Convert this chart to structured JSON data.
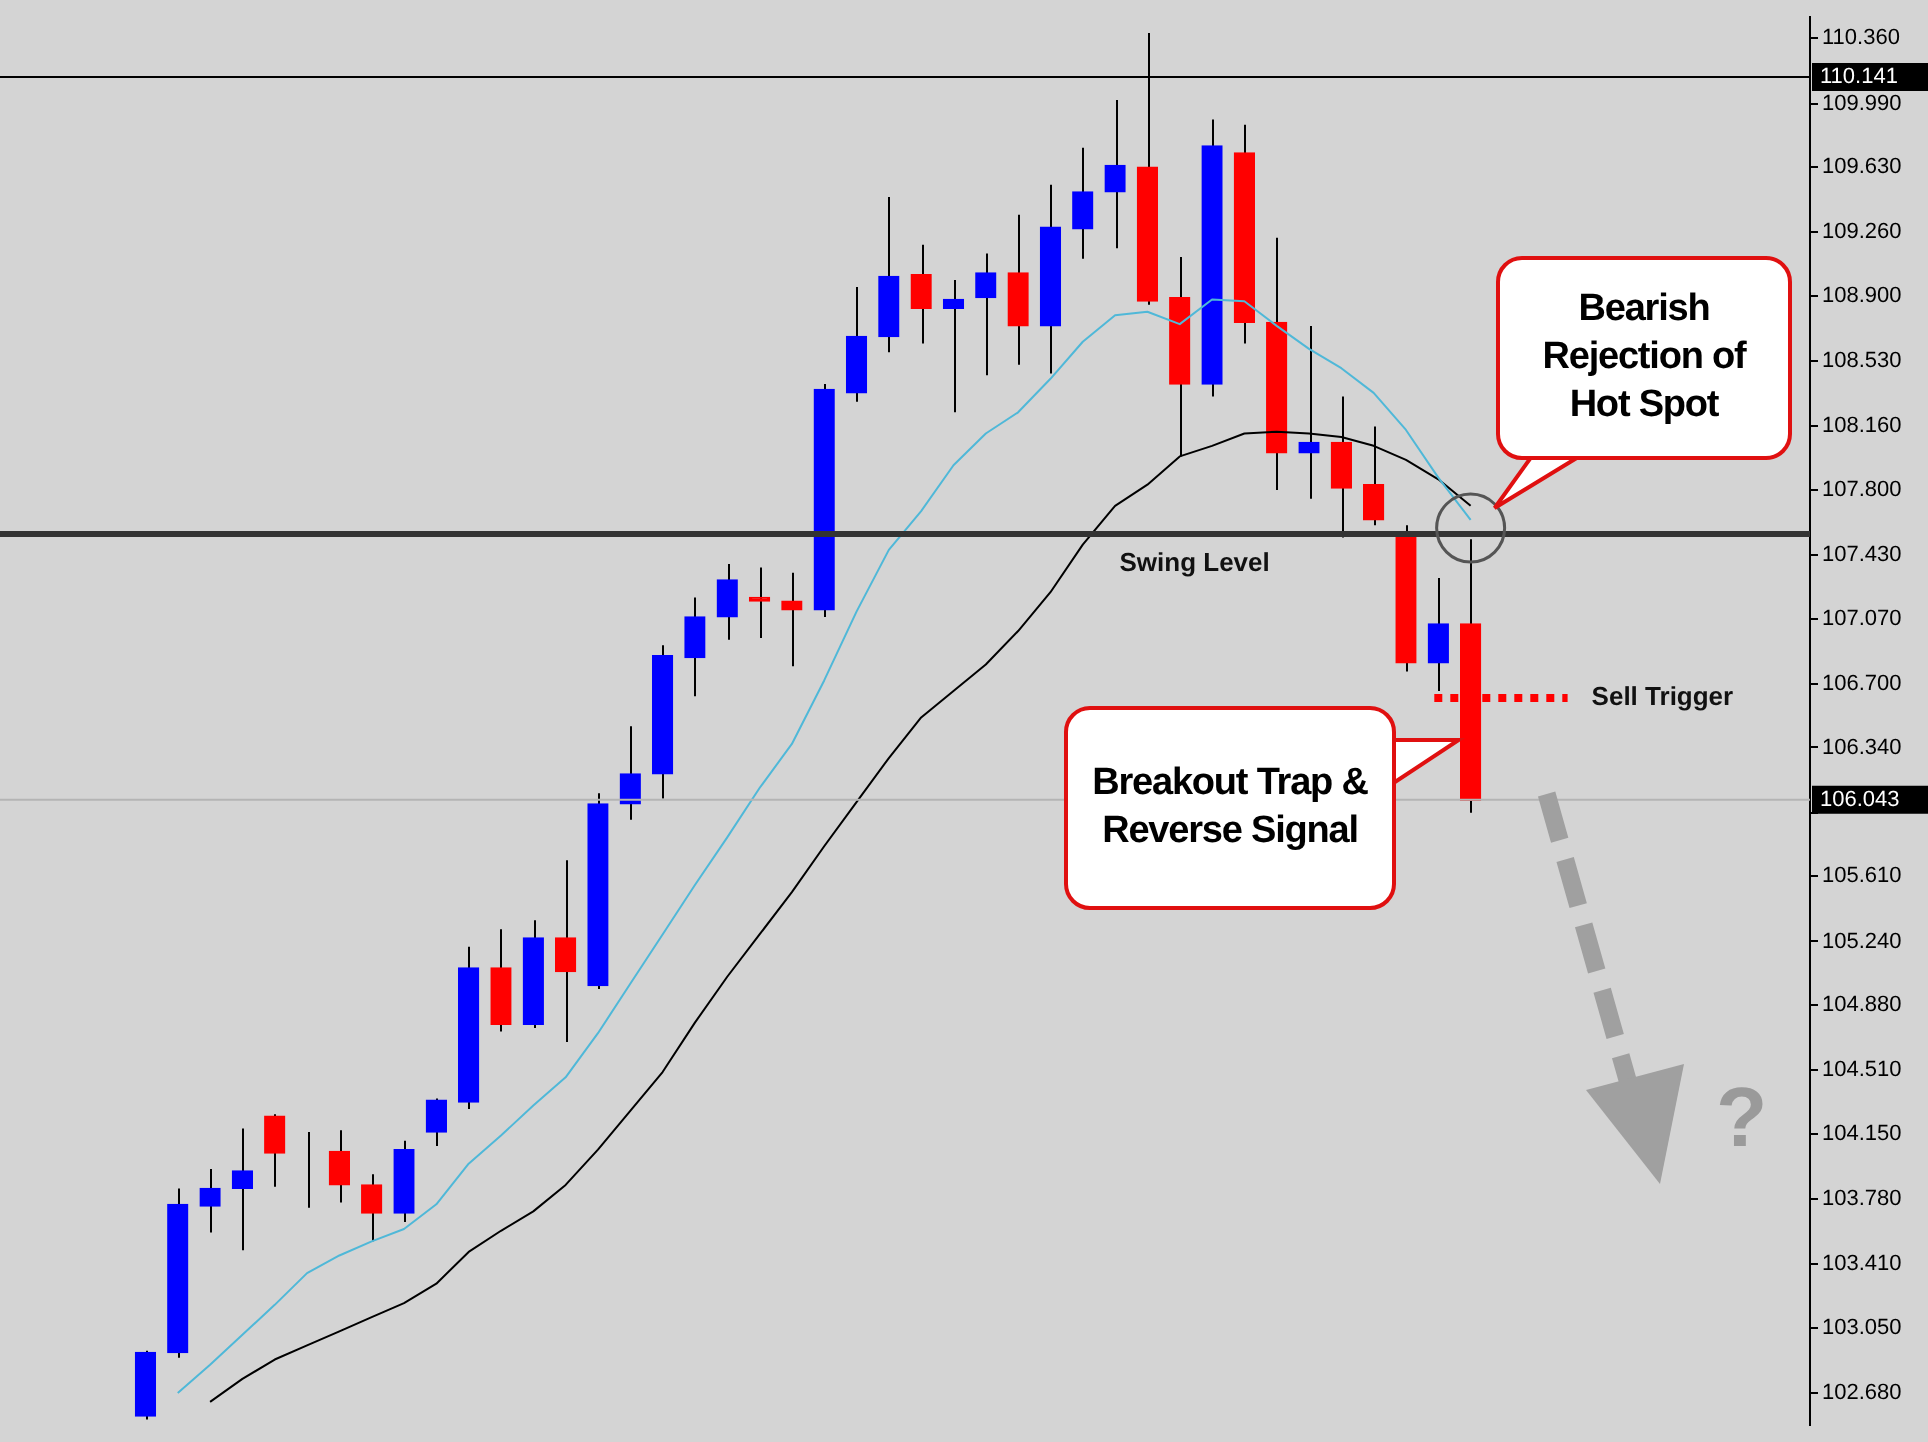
{
  "chart_data": {
    "type": "candlestick",
    "categories": [
      null,
      null,
      null,
      null,
      null,
      null,
      null,
      null,
      null,
      null,
      null,
      null,
      null,
      null,
      null,
      null,
      null,
      null,
      null,
      null,
      null,
      null,
      null,
      null,
      null,
      null,
      null,
      null,
      null,
      null,
      null,
      null,
      null,
      null,
      null,
      null,
      null,
      null,
      null,
      null,
      null,
      null,
      null,
      null,
      null,
      null,
      null,
      null,
      null,
      null,
      null,
      null,
      null,
      null,
      null,
      null
    ],
    "ohlc": [
      null,
      null,
      null,
      null,
      [
        102.55,
        102.92,
        102.53,
        102.91
      ],
      [
        102.91,
        103.84,
        102.88,
        103.75
      ],
      [
        103.74,
        103.95,
        103.59,
        103.84
      ],
      [
        103.84,
        104.18,
        103.49,
        103.94
      ],
      [
        104.25,
        104.26,
        103.85,
        104.04
      ],
      [
        104.05,
        104.16,
        103.73,
        104.05
      ],
      [
        104.05,
        104.17,
        103.76,
        103.86
      ],
      [
        103.86,
        103.92,
        103.54,
        103.7
      ],
      [
        103.7,
        104.11,
        103.65,
        104.06
      ],
      [
        104.16,
        104.35,
        104.08,
        104.34
      ],
      [
        104.33,
        105.21,
        104.29,
        105.09
      ],
      [
        105.09,
        105.31,
        104.73,
        104.77
      ],
      [
        104.77,
        105.36,
        104.75,
        105.26
      ],
      [
        105.26,
        105.7,
        104.67,
        105.07
      ],
      [
        104.99,
        106.08,
        104.97,
        106.02
      ],
      [
        106.02,
        106.46,
        105.93,
        106.19
      ],
      [
        106.19,
        106.92,
        106.05,
        106.86
      ],
      [
        106.85,
        107.19,
        106.63,
        107.08
      ],
      [
        107.08,
        107.38,
        106.95,
        107.29
      ],
      [
        107.19,
        107.36,
        106.96,
        107.17
      ],
      [
        107.17,
        107.33,
        106.8,
        107.12
      ],
      [
        107.12,
        108.4,
        107.08,
        108.37
      ],
      [
        108.35,
        108.95,
        108.3,
        108.67
      ],
      [
        108.67,
        109.46,
        108.58,
        109.01
      ],
      [
        109.02,
        109.19,
        108.63,
        108.83
      ],
      [
        108.83,
        108.99,
        108.24,
        108.88
      ],
      [
        108.89,
        109.14,
        108.45,
        109.03
      ],
      [
        109.03,
        109.36,
        108.51,
        108.73
      ],
      [
        108.73,
        109.53,
        108.46,
        109.29
      ],
      [
        109.28,
        109.74,
        109.11,
        109.49
      ],
      [
        109.49,
        110.01,
        109.17,
        109.64
      ],
      [
        109.63,
        110.39,
        108.85,
        108.87
      ],
      [
        108.89,
        109.12,
        107.99,
        108.4
      ],
      [
        108.4,
        109.9,
        108.33,
        109.75
      ],
      [
        109.71,
        109.87,
        108.63,
        108.75
      ],
      [
        108.75,
        109.23,
        107.8,
        108.01
      ],
      [
        108.01,
        108.73,
        107.75,
        108.07
      ],
      [
        108.07,
        108.33,
        107.53,
        107.81
      ],
      [
        107.83,
        108.16,
        107.6,
        107.63
      ],
      [
        107.55,
        107.6,
        106.77,
        106.82
      ],
      [
        106.82,
        107.3,
        106.66,
        107.04
      ],
      [
        107.04,
        107.52,
        105.97,
        106.04
      ],
      null,
      null,
      null,
      null,
      null,
      null,
      null,
      null,
      null,
      null
    ],
    "colors": [
      null,
      null,
      null,
      null,
      "#0000ff",
      "#0000ff",
      "#0000ff",
      "#0000ff",
      "#ff0000",
      "#000000",
      "#ff0000",
      "#ff0000",
      "#0000ff",
      "#0000ff",
      "#0000ff",
      "#ff0000",
      "#0000ff",
      "#ff0000",
      "#0000ff",
      "#0000ff",
      "#0000ff",
      "#0000ff",
      "#0000ff",
      "#ff0000",
      "#ff0000",
      "#0000ff",
      "#0000ff",
      "#0000ff",
      "#ff0000",
      "#0000ff",
      "#0000ff",
      "#ff0000",
      "#0000ff",
      "#0000ff",
      "#0000ff",
      "#ff0000",
      "#ff0000",
      "#0000ff",
      "#ff0000",
      "#ff0000",
      "#0000ff",
      "#ff0000",
      "#ff0000",
      "#ff0000",
      "#0000ff",
      "#ff0000",
      null,
      null,
      null,
      null,
      null,
      null,
      null,
      null,
      null,
      null
    ],
    "series": [
      {
        "type": "line",
        "color": "#4fb8d8",
        "values": [
          null,
          null,
          null,
          null,
          null,
          102.68,
          102.84,
          103.01,
          103.18,
          103.36,
          103.46,
          103.54,
          103.61,
          103.75,
          103.98,
          104.14,
          104.31,
          104.47,
          104.72,
          105.0,
          105.28,
          105.56,
          105.83,
          106.11,
          106.36,
          106.72,
          107.11,
          107.46,
          107.68,
          107.94,
          108.12,
          108.24,
          108.43,
          108.64,
          108.79,
          108.81,
          108.74,
          108.88,
          108.87,
          108.73,
          108.6,
          108.49,
          108.35,
          108.14,
          107.87,
          107.63,
          null,
          null,
          null,
          null,
          null,
          null,
          null,
          null,
          null,
          null
        ]
      },
      {
        "type": "line",
        "color": "#000000",
        "values": [
          null,
          null,
          null,
          null,
          null,
          null,
          102.63,
          102.76,
          102.87,
          102.95,
          103.03,
          103.11,
          103.19,
          103.3,
          103.48,
          103.6,
          103.71,
          103.86,
          104.06,
          104.28,
          104.5,
          104.78,
          105.04,
          105.28,
          105.52,
          105.78,
          106.03,
          106.28,
          106.51,
          106.66,
          106.81,
          107.0,
          107.22,
          107.49,
          107.71,
          107.83,
          107.99,
          108.05,
          108.12,
          108.13,
          108.12,
          108.1,
          108.05,
          107.97,
          107.86,
          107.71,
          null,
          null,
          null,
          null,
          null,
          null,
          null,
          null,
          null,
          null
        ]
      }
    ],
    "ylim": [
      102.5,
      110.48
    ],
    "yticks": [
      {
        "value": 110.36,
        "label": "110.360"
      },
      {
        "value": 109.99,
        "label": "109.990"
      },
      {
        "value": 109.63,
        "label": "109.630"
      },
      {
        "value": 109.26,
        "label": "109.260"
      },
      {
        "value": 108.9,
        "label": "108.900"
      },
      {
        "value": 108.53,
        "label": "108.530"
      },
      {
        "value": 108.16,
        "label": "108.160"
      },
      {
        "value": 107.8,
        "label": "107.800"
      },
      {
        "value": 107.43,
        "label": "107.430"
      },
      {
        "value": 107.07,
        "label": "107.070"
      },
      {
        "value": 106.7,
        "label": "106.700"
      },
      {
        "value": 106.34,
        "label": "106.340"
      },
      {
        "value": 105.97,
        "label": null
      },
      {
        "value": 105.61,
        "label": "105.610"
      },
      {
        "value": 105.24,
        "label": "105.240"
      },
      {
        "value": 104.88,
        "label": "104.880"
      },
      {
        "value": 104.51,
        "label": "104.510"
      },
      {
        "value": 104.15,
        "label": "104.150"
      },
      {
        "value": 103.78,
        "label": "103.780"
      },
      {
        "value": 103.41,
        "label": "103.410"
      },
      {
        "value": 103.05,
        "label": "103.050"
      },
      {
        "value": 102.68,
        "label": "102.680"
      }
    ],
    "tick_labels": "y",
    "ref_lines": [
      {
        "axis": "y",
        "value": 110.141,
        "label": "110.141",
        "color": "#000000"
      },
      {
        "axis": "y",
        "value": 106.043,
        "label": "106.043",
        "color": "#b4b4b4"
      },
      {
        "axis": "y",
        "value": 107.55,
        "label": "Swing Level",
        "color": "#333333"
      },
      {
        "axis": "y",
        "value": 106.62,
        "label": "Sell Trigger",
        "color": "#ff0000",
        "line_style": "dotted"
      }
    ],
    "annotations": [
      "Bearish Rejection of Hot Spot",
      "Breakout Trap & Reverse Signal",
      "?"
    ]
  }
}
